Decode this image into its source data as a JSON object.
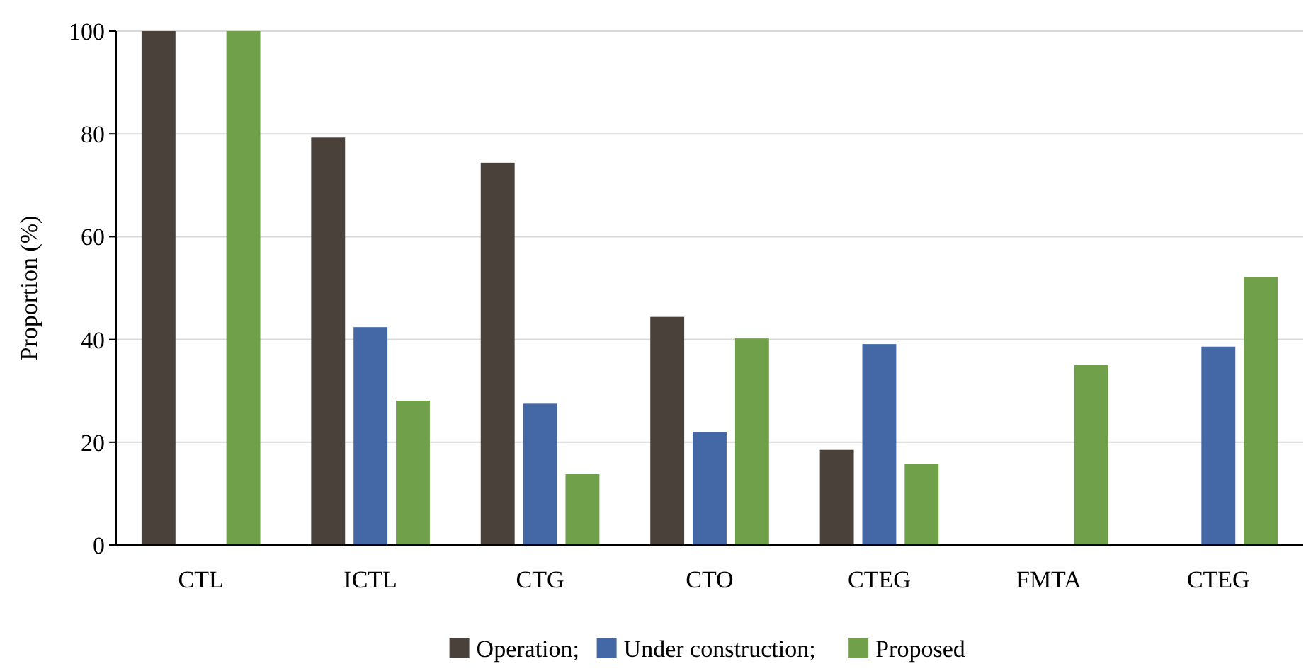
{
  "chart_data": {
    "type": "bar",
    "ylabel": "Proportion (%)",
    "categories": [
      "CTL",
      "ICTL",
      "CTG",
      "CTO",
      "CTEG",
      "FMTA",
      "CTEG"
    ],
    "series": [
      {
        "name": "Operation;",
        "color": "#4a413b",
        "values": [
          100,
          79.3,
          74.4,
          44.4,
          18.5,
          null,
          null
        ]
      },
      {
        "name": "Under construction;",
        "color": "#4468a5",
        "values": [
          null,
          42.4,
          27.5,
          22.0,
          39.1,
          null,
          38.6
        ]
      },
      {
        "name": "Proposed",
        "color": "#70a04a",
        "values": [
          100,
          28.1,
          13.8,
          40.2,
          15.7,
          35.0,
          52.1
        ]
      }
    ],
    "ylim": [
      0,
      100
    ],
    "yticks": [
      0,
      20,
      40,
      60,
      80,
      100
    ],
    "grid": "y",
    "legend": "bottom"
  }
}
